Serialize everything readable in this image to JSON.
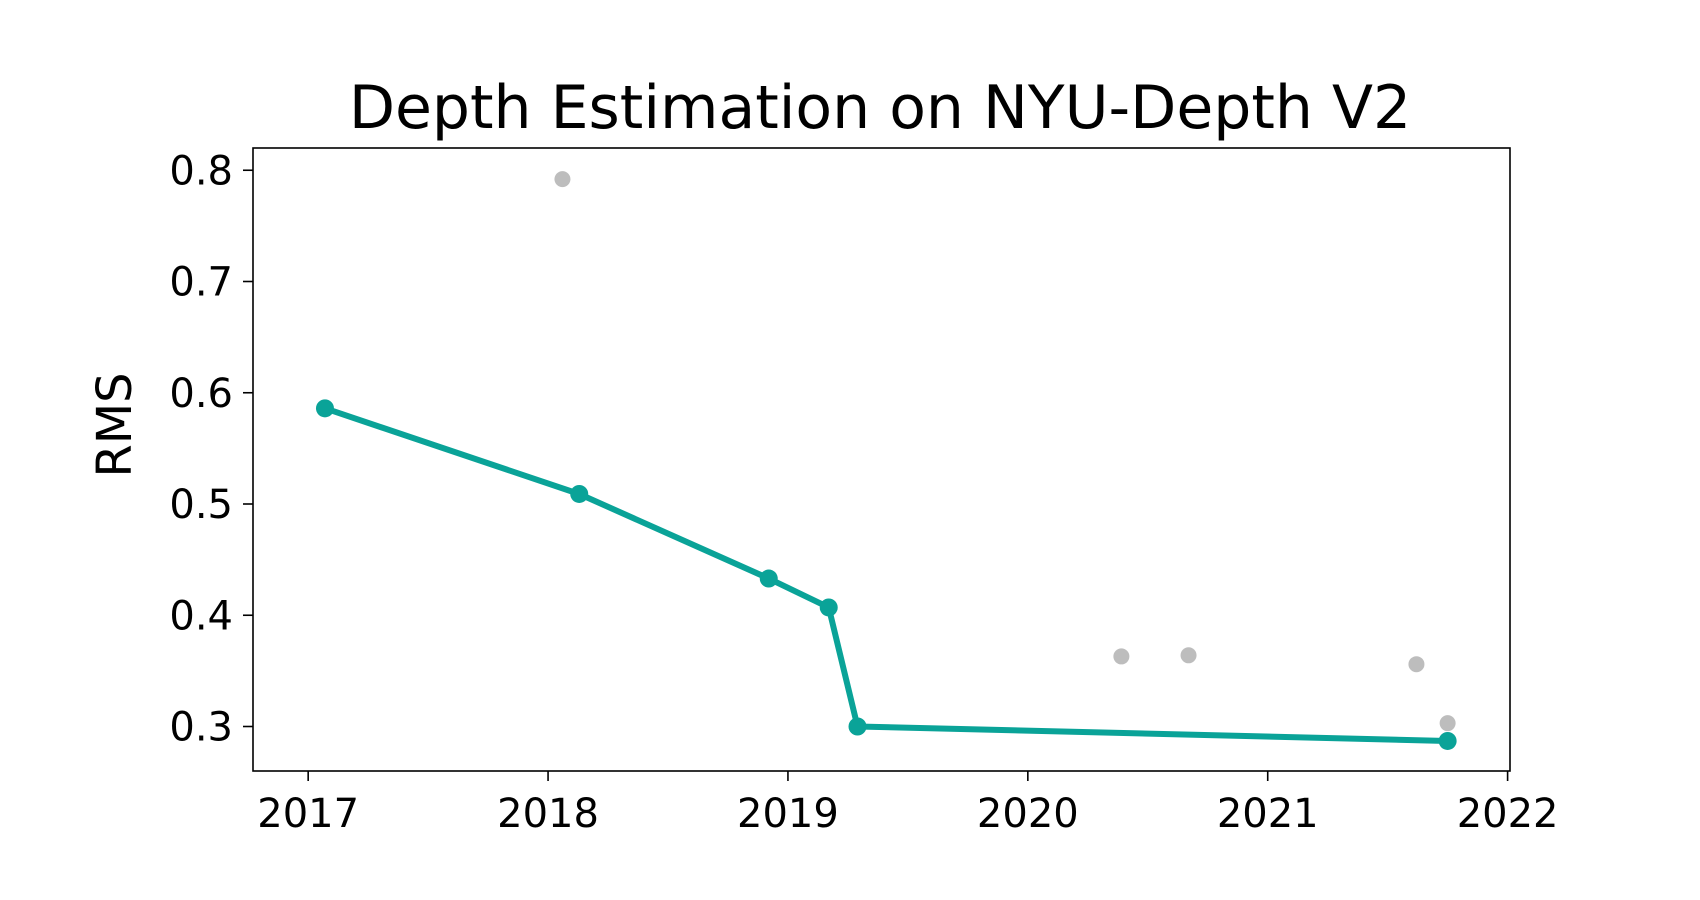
{
  "chart_data": {
    "type": "scatter",
    "title": "Depth Estimation on NYU-Depth V2",
    "xlabel": "",
    "ylabel": "RMS",
    "xlim": [
      2016.77,
      2022.01
    ],
    "ylim": [
      0.26,
      0.82
    ],
    "x_ticks": [
      "2017",
      "2018",
      "2019",
      "2020",
      "2021",
      "2022"
    ],
    "y_ticks": [
      "0.3",
      "0.4",
      "0.5",
      "0.6",
      "0.7",
      "0.8"
    ],
    "grid": false,
    "series": [
      {
        "color": "#0aa398",
        "mode": "line+markers",
        "x": [
          2017.07,
          2018.13,
          2018.92,
          2019.17,
          2019.29,
          2021.75
        ],
        "y": [
          0.586,
          0.509,
          0.433,
          0.407,
          0.3,
          0.287
        ]
      },
      {
        "color": "#bdbdbd",
        "mode": "markers",
        "x": [
          2018.06,
          2020.39,
          2020.67,
          2021.62,
          2021.75
        ],
        "y": [
          0.792,
          0.363,
          0.364,
          0.356,
          0.303
        ]
      }
    ]
  }
}
